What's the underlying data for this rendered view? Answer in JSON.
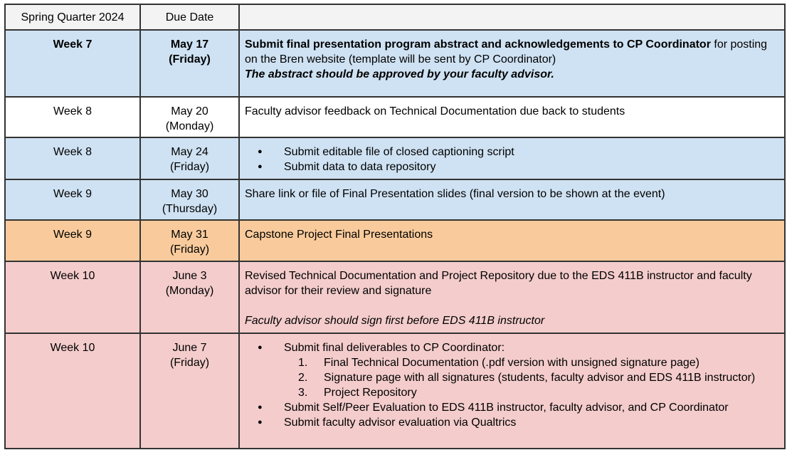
{
  "header": {
    "col1": "Spring Quarter 2024",
    "col2": "Due Date",
    "col3": ""
  },
  "rows": [
    {
      "week": "Week 7",
      "date_line1": "May 17",
      "date_line2": "(Friday)",
      "task_bold": "Submit final presentation program abstract and acknowledgements to CP Coordinator",
      "task_rest": " for posting on the Bren website (template will be sent by CP Coordinator)",
      "task_bold_italic": "The abstract should be approved by your faculty advisor."
    },
    {
      "week": "Week 8",
      "date_line1": "May 20",
      "date_line2": "(Monday)",
      "task": "Faculty advisor feedback on Technical Documentation due back to students"
    },
    {
      "week": "Week 8",
      "date_line1": "May 24",
      "date_line2": "(Friday)",
      "bullets": [
        "Submit editable file of closed captioning script",
        "Submit data to data repository"
      ]
    },
    {
      "week": "Week 9",
      "date_line1": "May 30",
      "date_line2": "(Thursday)",
      "task": "Share link or file of Final Presentation slides (final version to be shown at the event)"
    },
    {
      "week": "Week 9",
      "date_line1": "May 31",
      "date_line2": "(Friday)",
      "task": "Capstone Project Final Presentations"
    },
    {
      "week": "Week 10",
      "date_line1": "June 3",
      "date_line2": "(Monday)",
      "task": "Revised Technical Documentation and Project Repository due to the EDS 411B instructor and faculty advisor for their review and signature",
      "task_italic": "Faculty advisor should sign first before EDS 411B instructor"
    },
    {
      "week": "Week 10",
      "date_line1": "June 7",
      "date_line2": "(Friday)",
      "bullet_main": "Submit final deliverables to CP Coordinator:",
      "numbered": [
        {
          "num": "1.",
          "text": "Final Technical Documentation (.pdf version with unsigned signature page)"
        },
        {
          "num": "2.",
          "text": "Signature page with all signatures (students, faculty advisor and EDS 411B instructor)"
        },
        {
          "num": "3.",
          "text": "Project Repository"
        }
      ],
      "bullets_after": [
        "Submit Self/Peer Evaluation to EDS 411B instructor, faculty advisor, and CP Coordinator",
        "Submit faculty advisor evaluation via Qualtrics"
      ]
    }
  ],
  "colors": {
    "blue": "#cfe2f3",
    "orange": "#f9cb9c",
    "pink": "#f4cccc",
    "header": "#f3f3f3"
  }
}
